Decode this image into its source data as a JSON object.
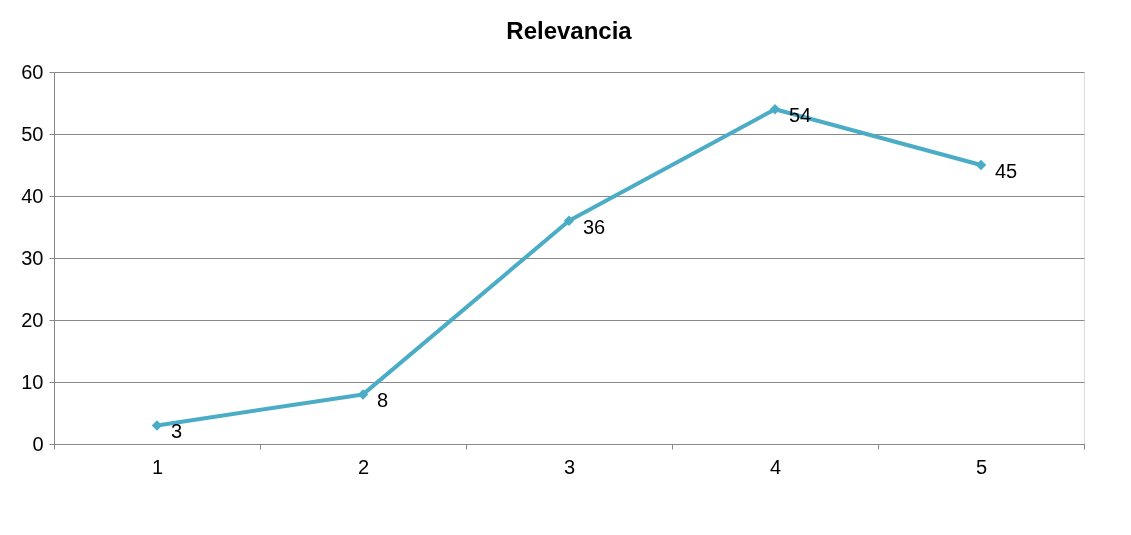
{
  "chart_data": {
    "type": "line",
    "title": "Relevancia",
    "categories": [
      "1",
      "2",
      "3",
      "4",
      "5"
    ],
    "series": [
      {
        "color": "#4bacc6",
        "values": [
          3,
          8,
          36,
          54,
          45
        ]
      }
    ],
    "ylim": [
      0,
      60
    ],
    "yticks": [
      0,
      10,
      20,
      30,
      40,
      50,
      60
    ],
    "grid": "y",
    "legend": false,
    "marker": "diamond",
    "line_style": "solid",
    "data_labels": true
  }
}
